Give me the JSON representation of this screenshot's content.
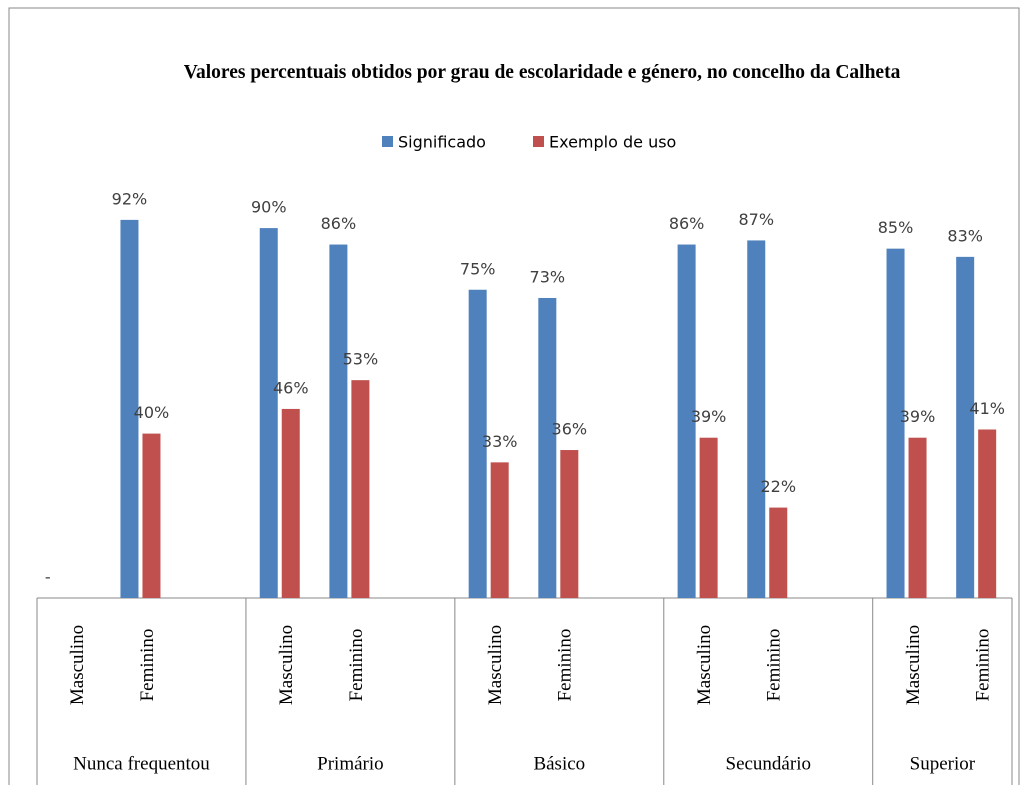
{
  "chart_data": {
    "type": "bar",
    "title": "Valores percentuais obtidos por grau de escolaridade e género, no concelho da Calheta",
    "groups": [
      "Nunca frequentou",
      "Primário",
      "Básico",
      "Secundário",
      "Superior"
    ],
    "categories": [
      "Masculino",
      "Feminino",
      "Masculino",
      "Feminino",
      "Masculino",
      "Feminino",
      "Masculino",
      "Feminino",
      "Masculino",
      "Feminino"
    ],
    "series": [
      {
        "name": "Significado",
        "color": "#4f81bd",
        "values": [
          0,
          92,
          90,
          86,
          75,
          73,
          86,
          87,
          85,
          83
        ],
        "value_labels": [
          "-",
          "92%",
          "90%",
          "86%",
          "75%",
          "73%",
          "86%",
          "87%",
          "85%",
          "83%"
        ]
      },
      {
        "name": "Exemplo de uso",
        "color": "#c0504d",
        "values": [
          null,
          40,
          46,
          53,
          33,
          36,
          39,
          22,
          39,
          41
        ],
        "value_labels": [
          null,
          "40%",
          "46%",
          "53%",
          "33%",
          "36%",
          "39%",
          "22%",
          "39%",
          "41%"
        ]
      }
    ],
    "ylim": [
      0,
      100
    ],
    "legend": "top"
  }
}
